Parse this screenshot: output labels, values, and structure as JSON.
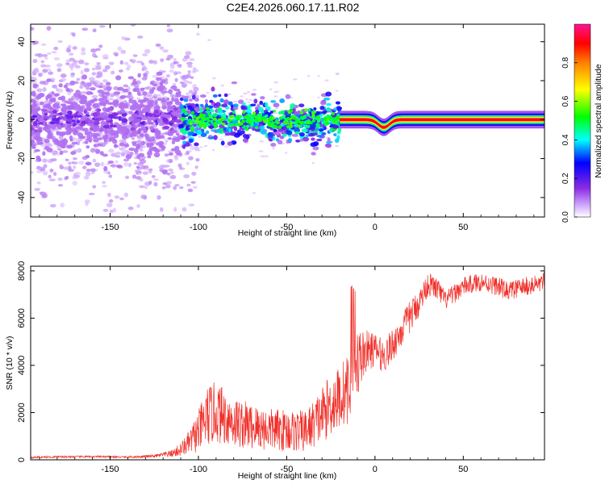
{
  "figure": {
    "title": "C2E4.2026.060.17.11.R02"
  },
  "colors": {
    "snr_line": "#f0302a",
    "frame": "#000000"
  },
  "chart_data": [
    {
      "type": "heatmap",
      "title": "C2E4.2026.060.17.11.R02",
      "xlabel": "Height of straight line (km)",
      "ylabel": "Frequency (Hz)",
      "xlim": [
        -195,
        96
      ],
      "ylim": [
        -50,
        49
      ],
      "xticks": [
        -150,
        -100,
        -50,
        0,
        50
      ],
      "xtick_labels": [
        "-150",
        "-100",
        "-50",
        "0",
        "50"
      ],
      "yticks": [
        -40,
        -20,
        0,
        20,
        40
      ],
      "ytick_labels": [
        "-40",
        "-20",
        "0",
        "20",
        "40"
      ],
      "colorbar": {
        "label": "Normalized spectral amplitude",
        "range": [
          0.0,
          1.0
        ],
        "ticks": [
          0.0,
          0.2,
          0.4,
          0.6,
          0.8
        ],
        "tick_labels": [
          "0.0",
          "0.2",
          "0.4",
          "0.6",
          "0.8"
        ]
      },
      "ridge": [
        {
          "from": -195,
          "to": -110,
          "level": 0.18,
          "spread_hz": 9
        },
        {
          "from": -110,
          "to": -20,
          "level": 0.45,
          "spread_hz": 5
        },
        {
          "from": -20,
          "to": 96,
          "level": 0.95,
          "spread_hz": 1.5
        }
      ],
      "feature_dip": {
        "x": 5,
        "depth_hz": -4
      }
    },
    {
      "type": "line",
      "title": "",
      "xlabel": "Height of straight line (km)",
      "ylabel": "SNR (10 * v/v)",
      "xlim": [
        -195,
        96
      ],
      "ylim": [
        0,
        8200
      ],
      "xticks": [
        -150,
        -100,
        -50,
        0,
        50
      ],
      "xtick_labels": [
        "-150",
        "-100",
        "-50",
        "0",
        "50"
      ],
      "yticks": [
        0,
        2000,
        4000,
        6000,
        8000
      ],
      "ytick_labels": [
        "0",
        "2000",
        "4000",
        "6000",
        "8000"
      ],
      "series": [
        {
          "name": "SNR",
          "x": [
            -195,
            -180,
            -160,
            -140,
            -125,
            -115,
            -110,
            -105,
            -100,
            -95,
            -90,
            -85,
            -80,
            -70,
            -60,
            -50,
            -40,
            -35,
            -30,
            -25,
            -20,
            -15,
            -12,
            -10,
            -5,
            0,
            5,
            10,
            15,
            20,
            25,
            30,
            35,
            40,
            45,
            50,
            55,
            60,
            65,
            70,
            75,
            80,
            85,
            90,
            96
          ],
          "values": [
            100,
            120,
            130,
            110,
            150,
            250,
            400,
            700,
            1100,
            1700,
            1900,
            1700,
            1500,
            1300,
            1200,
            1150,
            1100,
            1400,
            1800,
            2200,
            2500,
            2900,
            3000,
            4000,
            4500,
            4600,
            4300,
            4800,
            5400,
            6000,
            6600,
            7400,
            7200,
            6700,
            7000,
            7300,
            7400,
            7500,
            7400,
            7300,
            7100,
            7200,
            7300,
            7350,
            7500
          ],
          "noise": [
            40,
            40,
            40,
            40,
            60,
            150,
            300,
            500,
            900,
            1300,
            1300,
            1200,
            1100,
            1000,
            900,
            900,
            900,
            1000,
            1200,
            1300,
            1400,
            1500,
            1600,
            1500,
            900,
            700,
            700,
            700,
            700,
            700,
            600,
            500,
            500,
            400,
            400,
            400,
            400,
            400,
            400,
            400,
            400,
            400,
            400,
            400,
            400
          ]
        }
      ]
    }
  ]
}
